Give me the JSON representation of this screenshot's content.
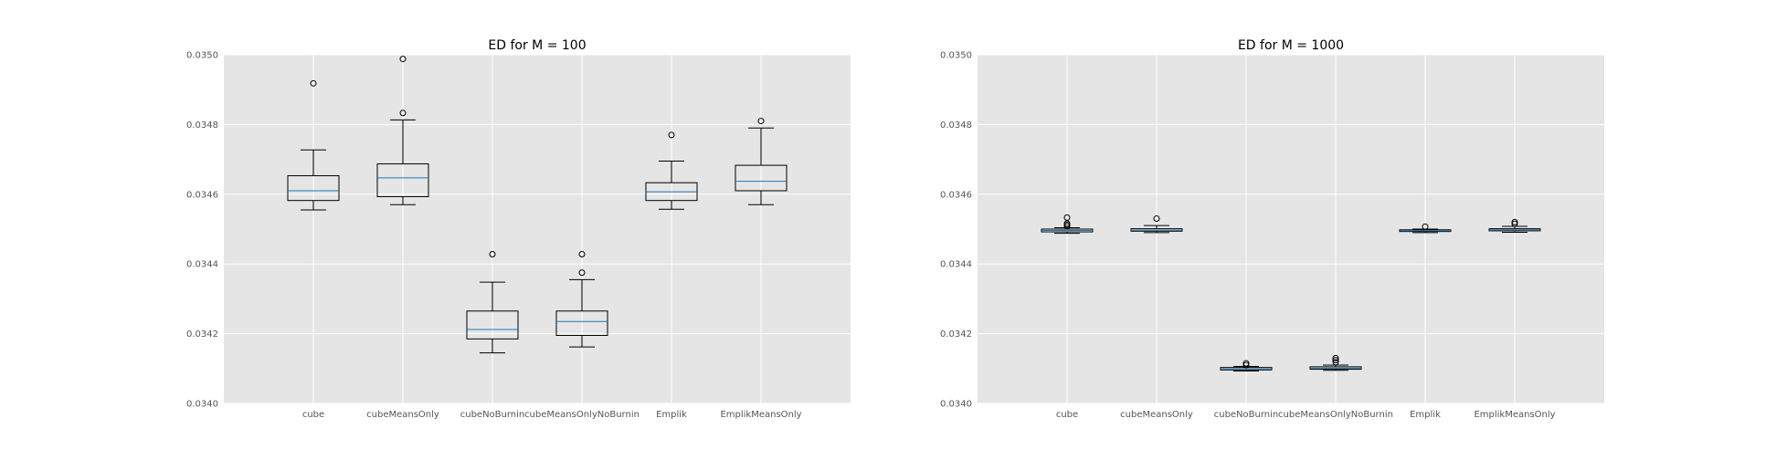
{
  "chart_data": [
    {
      "type": "box",
      "title": "ED for M = 100",
      "categories": [
        "cube",
        "cubeMeansOnly",
        "cubeNoBurnin",
        "cubeMeansOnlyNoBurnin",
        "Emplik",
        "EmplikMeansOnly"
      ],
      "ylim": [
        0.034,
        0.035
      ],
      "yticks": [
        "0.0340",
        "0.0342",
        "0.0344",
        "0.0346",
        "0.0348",
        "0.0350"
      ],
      "grid": true,
      "boxes": [
        {
          "whislo": 0.034555,
          "q1": 0.034582,
          "med": 0.03461,
          "q3": 0.034653,
          "whishi": 0.034727,
          "fliers": [
            0.034918
          ]
        },
        {
          "whislo": 0.03457,
          "q1": 0.034593,
          "med": 0.034647,
          "q3": 0.034687,
          "whishi": 0.034813,
          "fliers": [
            0.034833,
            0.034988
          ]
        },
        {
          "whislo": 0.034145,
          "q1": 0.034185,
          "med": 0.034212,
          "q3": 0.034265,
          "whishi": 0.034348,
          "fliers": [
            0.034428
          ]
        },
        {
          "whislo": 0.034162,
          "q1": 0.034195,
          "med": 0.034235,
          "q3": 0.034265,
          "whishi": 0.034355,
          "fliers": [
            0.034375,
            0.034428
          ]
        },
        {
          "whislo": 0.034557,
          "q1": 0.034582,
          "med": 0.034607,
          "q3": 0.034633,
          "whishi": 0.034695,
          "fliers": [
            0.03477
          ]
        },
        {
          "whislo": 0.03457,
          "q1": 0.03461,
          "med": 0.034637,
          "q3": 0.034683,
          "whishi": 0.03479,
          "fliers": [
            0.03481
          ]
        }
      ]
    },
    {
      "type": "box",
      "title": "ED for M = 1000",
      "categories": [
        "cube",
        "cubeMeansOnly",
        "cubeNoBurnin",
        "cubeMeansOnlyNoBurnin",
        "Emplik",
        "EmplikMeansOnly"
      ],
      "ylim": [
        0.034,
        0.035
      ],
      "yticks": [
        "0.0340",
        "0.0342",
        "0.0344",
        "0.0346",
        "0.0348",
        "0.0350"
      ],
      "grid": true,
      "boxes": [
        {
          "whislo": 0.034488,
          "q1": 0.034492,
          "med": 0.034496,
          "q3": 0.0345,
          "whishi": 0.034504,
          "fliers": [
            0.034508,
            0.034512,
            0.034516,
            0.034533
          ]
        },
        {
          "whislo": 0.03449,
          "q1": 0.034494,
          "med": 0.034497,
          "q3": 0.034501,
          "whishi": 0.03451,
          "fliers": [
            0.03453
          ]
        },
        {
          "whislo": 0.034093,
          "q1": 0.034096,
          "med": 0.034099,
          "q3": 0.034103,
          "whishi": 0.034106,
          "fliers": [
            0.03411,
            0.034115
          ]
        },
        {
          "whislo": 0.034095,
          "q1": 0.034098,
          "med": 0.034101,
          "q3": 0.034105,
          "whishi": 0.03411,
          "fliers": [
            0.034118,
            0.034124,
            0.03413
          ]
        },
        {
          "whislo": 0.03449,
          "q1": 0.034493,
          "med": 0.034496,
          "q3": 0.034498,
          "whishi": 0.0345,
          "fliers": [
            0.034507
          ]
        },
        {
          "whislo": 0.034491,
          "q1": 0.034495,
          "med": 0.034498,
          "q3": 0.034501,
          "whishi": 0.034508,
          "fliers": [
            0.034515,
            0.03452
          ]
        }
      ]
    }
  ]
}
